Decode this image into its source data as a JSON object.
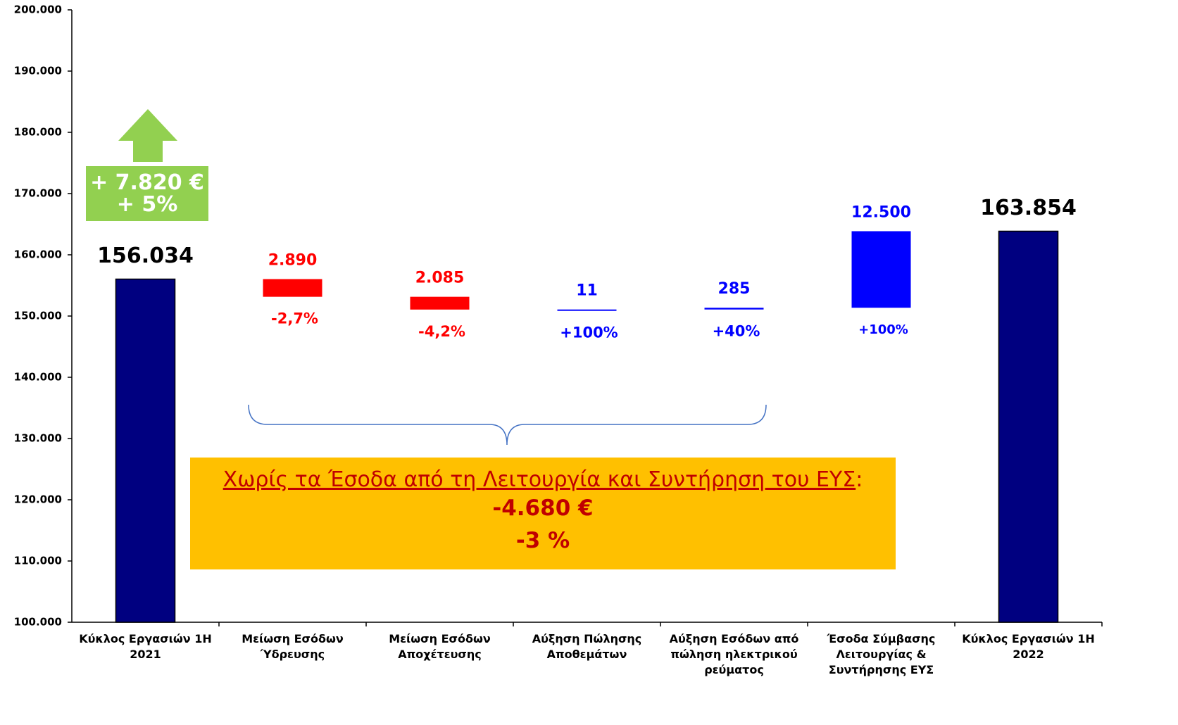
{
  "chart_data": {
    "type": "waterfall",
    "categories": [
      "Κύκλος Εργασιών 1Η 2021",
      "Μείωση Εσόδων Ύδρευσης",
      "Μείωση Εσόδων Αποχέτευσης",
      "Αύξηση Πώλησης Αποθεμάτων",
      "Αύξηση Εσόδων από πώληση ηλεκτρικού ρεύματος",
      "Έσοδα Σύμβασης Λειτουργίας & Συντήρησης ΕΥΣ",
      "Κύκλος Εργασιών 1Η 2022"
    ],
    "values": [
      156034,
      2890,
      2085,
      11,
      285,
      12500,
      163854
    ],
    "value_labels": [
      "156.034",
      "2.890",
      "2.085",
      "11",
      "285",
      "12.500",
      "163.854"
    ],
    "measure": [
      "total",
      "decrease",
      "decrease",
      "increase",
      "increase",
      "increase",
      "total"
    ],
    "percent_labels": [
      null,
      "-2,7%",
      "-4,2%",
      "+100%",
      "+40%",
      "+100%",
      null
    ],
    "colors": {
      "total": "#000080",
      "decrease": "#ff0000",
      "increase": "#0000ff"
    },
    "label_colors": {
      "total": "#000000",
      "decrease": "#ff0000",
      "increase": "#0000ff"
    },
    "ylim": [
      100000,
      200000
    ],
    "yticks": [
      {
        "value": 100000,
        "label": "100.000"
      },
      {
        "value": 110000,
        "label": "110.000"
      },
      {
        "value": 120000,
        "label": "120.000"
      },
      {
        "value": 130000,
        "label": "130.000"
      },
      {
        "value": 140000,
        "label": "140.000"
      },
      {
        "value": 150000,
        "label": "150.000"
      },
      {
        "value": 160000,
        "label": "160.000"
      },
      {
        "value": 170000,
        "label": "170.000"
      },
      {
        "value": 180000,
        "label": "180.000"
      },
      {
        "value": 190000,
        "label": "190.000"
      },
      {
        "value": 200000,
        "label": "200.000"
      }
    ],
    "annotations": {
      "growth": [
        "+ 7.820 €",
        "+ 5%"
      ],
      "note_title": "Χωρίς τα Έσοδα από τη Λειτουργία και Συντήρηση του ΕΥΣ",
      "note_colon": ":",
      "note_lines": [
        "-4.680 €",
        "-3 %"
      ]
    }
  }
}
